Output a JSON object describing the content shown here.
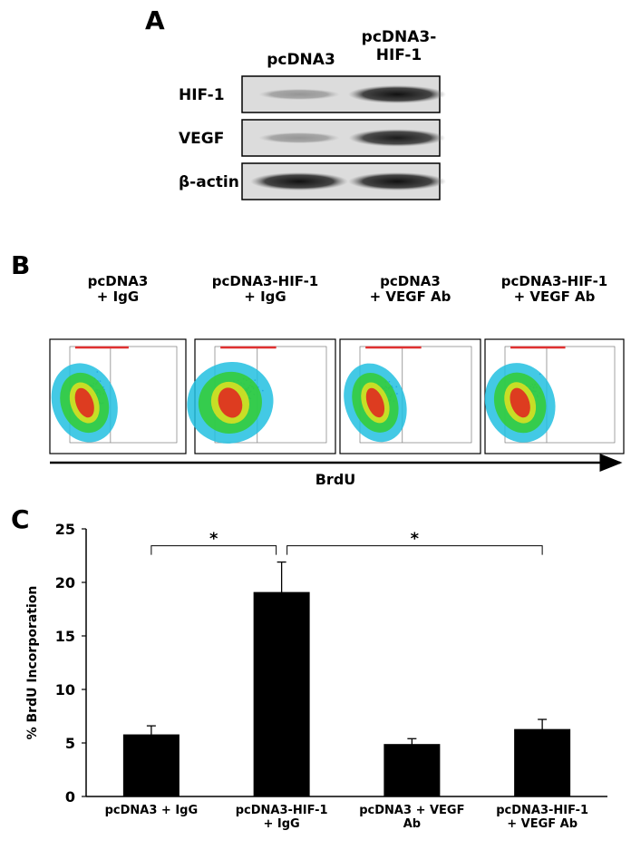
{
  "panel_labels": [
    "A",
    "B",
    "C"
  ],
  "western_blot": {
    "columns": [
      "pcDNA3",
      "pcDNA3-\nHIF-1"
    ],
    "rows": [
      "HIF-1",
      "VEGF",
      "β-actin"
    ]
  },
  "flow_cytometry": {
    "conditions": [
      "pcDNA3\n+ IgG",
      "pcDNA3-HIF-1\n+ IgG",
      "pcDNA3\n+ VEGF Ab",
      "pcDNA3-HIF-1\n+ VEGF Ab"
    ],
    "axis_label": "BrdU"
  },
  "chart_data": {
    "type": "bar",
    "ylabel": "% BrdU Incorporation",
    "categories": [
      "pcDNA3 + IgG",
      "pcDNA3-HIF-1\n+ IgG",
      "pcDNA3 + VEGF\nAb",
      "pcDNA3-HIF-1\n+ VEGF Ab"
    ],
    "values": [
      5.8,
      19.1,
      4.9,
      6.3
    ],
    "errors": [
      0.8,
      2.8,
      0.5,
      0.9
    ],
    "color": "#000000",
    "ylim": [
      0,
      25
    ],
    "yticks": [
      0,
      5,
      10,
      15,
      20,
      25
    ],
    "annotations": [
      {
        "text": "*",
        "between": [
          0,
          1
        ]
      },
      {
        "text": "*",
        "between": [
          1,
          3
        ]
      }
    ]
  }
}
